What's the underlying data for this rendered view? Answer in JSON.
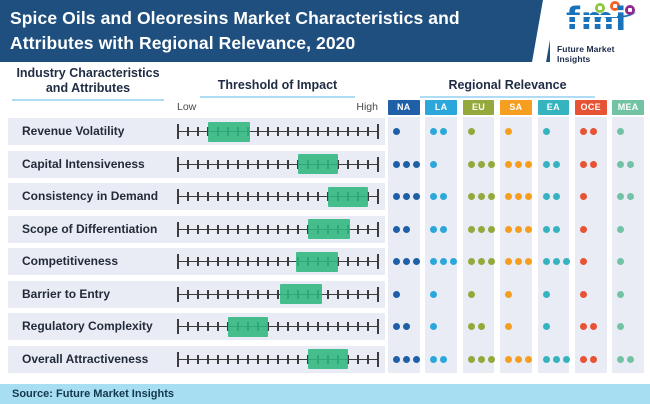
{
  "header": {
    "title_line1": "Spice Oils and Oleoresins Market Characteristics and",
    "title_line2": "Attributes with Regional Relevance, 2020",
    "bg_color": "#1e4f7e"
  },
  "logo": {
    "brand": "fmi",
    "brand_color": "#1a72ba",
    "tagline": "Future Market Insights",
    "icons": [
      {
        "name": "chat-bubble-icon",
        "color": "#8dc63f"
      },
      {
        "name": "chart-icon",
        "color": "#f26322"
      },
      {
        "name": "person-icon",
        "color": "#92278f"
      }
    ]
  },
  "section_headers": {
    "attributes": "Industry Characteristics and Attributes",
    "threshold": "Threshold of Impact",
    "regional": "Regional Relevance",
    "scale_low": "Low",
    "scale_high": "High"
  },
  "footer": {
    "source": "Source: Future Market Insights"
  },
  "chart_data": {
    "type": "table",
    "title": "Spice Oils and Oleoresins Market Characteristics and Attributes with Regional Relevance, 2020",
    "threshold_axis": {
      "min_label": "Low",
      "max_label": "High",
      "range": [
        0,
        1
      ],
      "ticks": 21
    },
    "range_color": "#2eb67e",
    "row_band_color": "#e9ecf4",
    "regions": [
      {
        "code": "NA",
        "color": "#1f5fa8"
      },
      {
        "code": "LA",
        "color": "#2ca7dc"
      },
      {
        "code": "EU",
        "color": "#94a93c"
      },
      {
        "code": "SA",
        "color": "#f59e1f"
      },
      {
        "code": "EA",
        "color": "#35b4bf"
      },
      {
        "code": "OCE",
        "color": "#e65435"
      },
      {
        "code": "MEA",
        "color": "#72c3a4"
      }
    ],
    "rows": [
      {
        "attribute": "Revenue Volatility",
        "impact_range": [
          0.15,
          0.36
        ],
        "relevance": [
          1,
          2,
          1,
          1,
          1,
          2,
          1
        ]
      },
      {
        "attribute": "Capital Intensiveness",
        "impact_range": [
          0.6,
          0.8
        ],
        "relevance": [
          3,
          1,
          3,
          3,
          2,
          2,
          2
        ]
      },
      {
        "attribute": "Consistency in Demand",
        "impact_range": [
          0.75,
          0.95
        ],
        "relevance": [
          3,
          2,
          3,
          3,
          2,
          1,
          2
        ]
      },
      {
        "attribute": "Scope of Differentiation",
        "impact_range": [
          0.65,
          0.86
        ],
        "relevance": [
          2,
          2,
          3,
          3,
          2,
          1,
          1
        ]
      },
      {
        "attribute": "Competitiveness",
        "impact_range": [
          0.59,
          0.8
        ],
        "relevance": [
          3,
          3,
          3,
          3,
          3,
          1,
          1
        ]
      },
      {
        "attribute": "Barrier to Entry",
        "impact_range": [
          0.51,
          0.72
        ],
        "relevance": [
          1,
          1,
          1,
          1,
          1,
          1,
          1
        ]
      },
      {
        "attribute": "Regulatory Complexity",
        "impact_range": [
          0.25,
          0.45
        ],
        "relevance": [
          2,
          1,
          2,
          1,
          1,
          2,
          1
        ]
      },
      {
        "attribute": "Overall Attractiveness",
        "impact_range": [
          0.65,
          0.85
        ],
        "relevance": [
          3,
          2,
          3,
          3,
          3,
          2,
          2
        ]
      }
    ]
  }
}
